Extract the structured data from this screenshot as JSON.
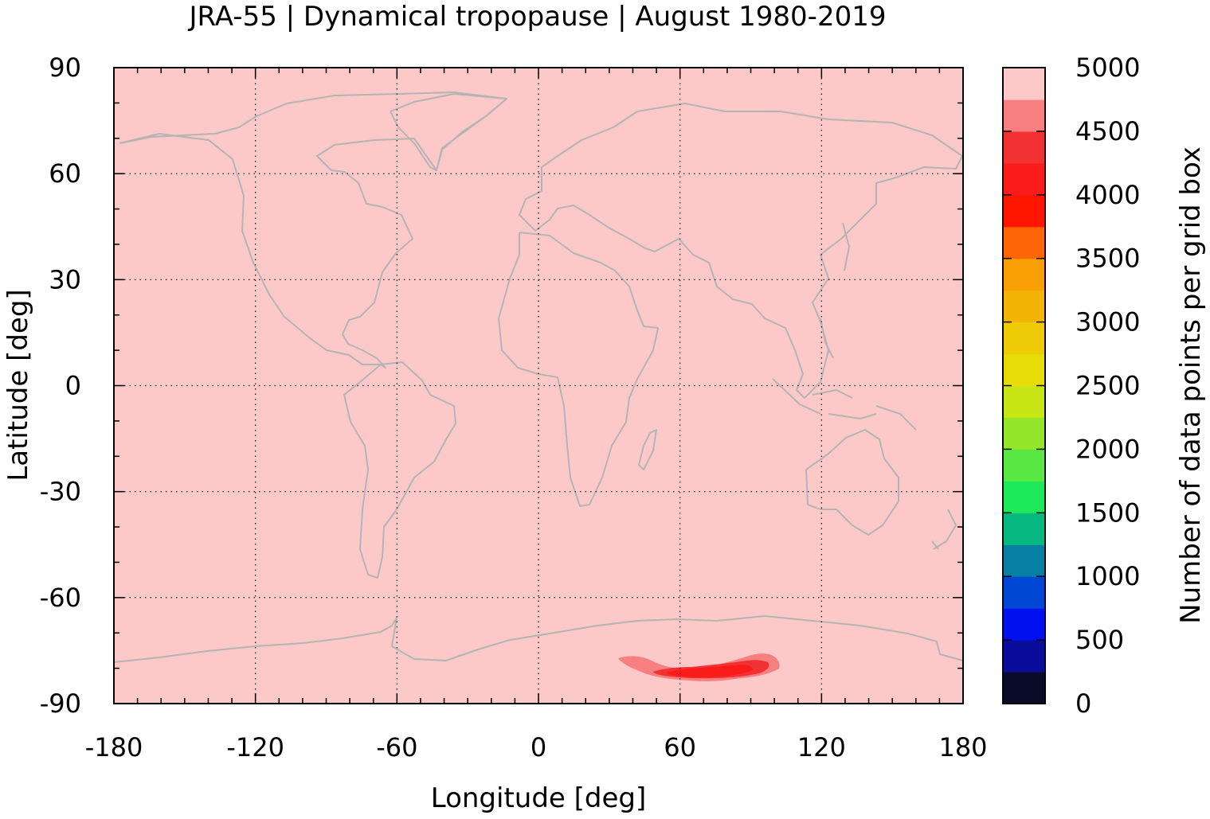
{
  "chart_data": {
    "type": "heatmap",
    "title": "JRA-55 | Dynamical tropopause | August 1980-2019",
    "xlabel": "Longitude [deg]",
    "ylabel": "Latitude [deg]",
    "xlim": [
      -180,
      180
    ],
    "ylim": [
      -90,
      90
    ],
    "x_ticks": [
      -180,
      -120,
      -60,
      0,
      60,
      120,
      180
    ],
    "y_ticks": [
      -90,
      -60,
      -30,
      0,
      30,
      60,
      90
    ],
    "x_tick_labels": [
      "-180",
      "-120",
      "-60",
      "0",
      "60",
      "120",
      "180"
    ],
    "y_tick_labels": [
      "-90",
      "-60",
      "-30",
      "0",
      "30",
      "60",
      "90"
    ],
    "grid": true,
    "background_value": 5000,
    "coastlines": true,
    "coastline_color": "#b4b4b4",
    "colorbar": {
      "label": "Number of data points per grid box",
      "range": [
        0,
        5000
      ],
      "tick_values": [
        0,
        500,
        1000,
        1500,
        2000,
        2500,
        3000,
        3500,
        4000,
        4500,
        5000
      ],
      "tick_labels": [
        "0",
        "500",
        "1000",
        "1500",
        "2000",
        "2500",
        "3000",
        "3500",
        "4000",
        "4500",
        "5000"
      ],
      "colors": [
        "#0b0b2a",
        "#0a0d9c",
        "#0010ee",
        "#0047d6",
        "#067fa3",
        "#08b881",
        "#1de85a",
        "#5ae845",
        "#93e629",
        "#c8e515",
        "#e6dc07",
        "#efcb07",
        "#f2b406",
        "#f79f04",
        "#fd6506",
        "#fe1600",
        "#fa1b1b",
        "#f23232",
        "#f77f7f",
        "#fdc8c8"
      ]
    },
    "features": [
      {
        "name": "reduced count region over East Antarctica",
        "lon_range": [
          32,
          102
        ],
        "lat_range": [
          -86,
          -77
        ],
        "min_value": 4000,
        "level_values": [
          4750,
          4500,
          4250
        ]
      }
    ]
  }
}
